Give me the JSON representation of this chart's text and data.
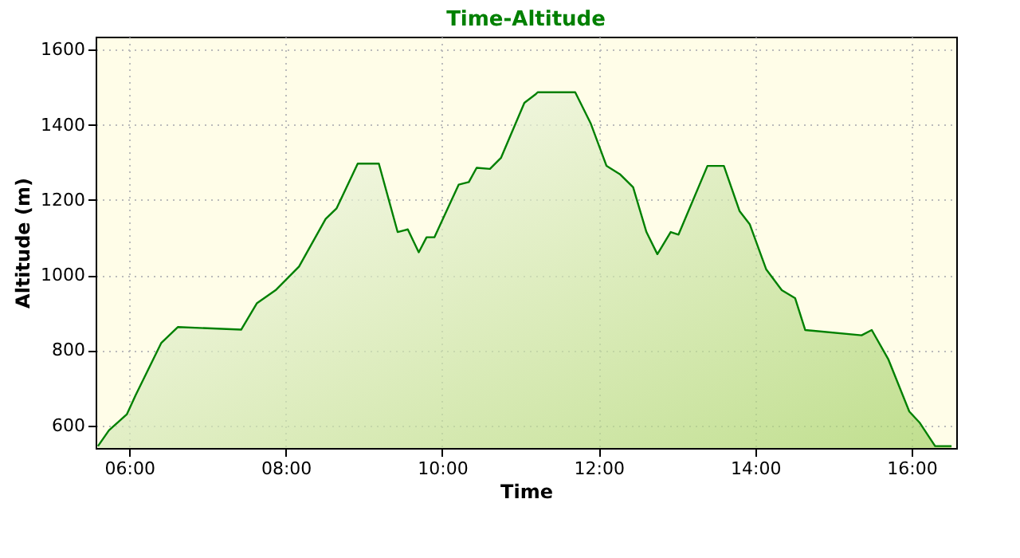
{
  "chart_data": {
    "type": "area",
    "title": "Time-Altitude",
    "xlabel": "Time",
    "ylabel": "Altitude (m)",
    "x": [
      5.6,
      5.74,
      5.97,
      6.08,
      6.41,
      6.62,
      7.43,
      7.63,
      7.87,
      8.17,
      8.51,
      8.65,
      8.92,
      9.19,
      9.43,
      9.56,
      9.7,
      9.8,
      9.9,
      10.21,
      10.34,
      10.44,
      10.61,
      10.75,
      11.05,
      11.19,
      11.22,
      11.7,
      11.9,
      12.1,
      12.27,
      12.44,
      12.61,
      12.75,
      12.92,
      13.02,
      13.39,
      13.6,
      13.8,
      13.93,
      14.14,
      14.34,
      14.51,
      14.64,
      15.36,
      15.49,
      15.7,
      15.97,
      16.1,
      16.3,
      16.51
    ],
    "series": [
      {
        "color": "#8cc63f",
        "values": [
          545,
          587,
          630,
          680,
          820,
          862,
          855,
          925,
          960,
          1023,
          1150,
          1178,
          1297,
          1297,
          1115,
          1122,
          1061,
          1101,
          1101,
          1241,
          1248,
          1286,
          1283,
          1312,
          1459,
          1481,
          1487,
          1487,
          1403,
          1291,
          1269,
          1234,
          1115,
          1056,
          1115,
          1108,
          1291,
          1291,
          1171,
          1136,
          1016,
          960,
          939,
          854,
          840,
          854,
          777,
          637,
          608,
          545,
          545
        ]
      }
    ],
    "xlim": [
      5.57,
      16.57
    ],
    "ylim": [
      540,
      1635
    ],
    "xticks": [
      {
        "value": 6,
        "label": "06:00"
      },
      {
        "value": 8,
        "label": "08:00"
      },
      {
        "value": 10,
        "label": "10:00"
      },
      {
        "value": 12,
        "label": "12:00"
      },
      {
        "value": 14,
        "label": "14:00"
      },
      {
        "value": 16,
        "label": "16:00"
      }
    ],
    "yticks": [
      600,
      800,
      1000,
      1200,
      1400,
      1600
    ],
    "grid": true
  }
}
